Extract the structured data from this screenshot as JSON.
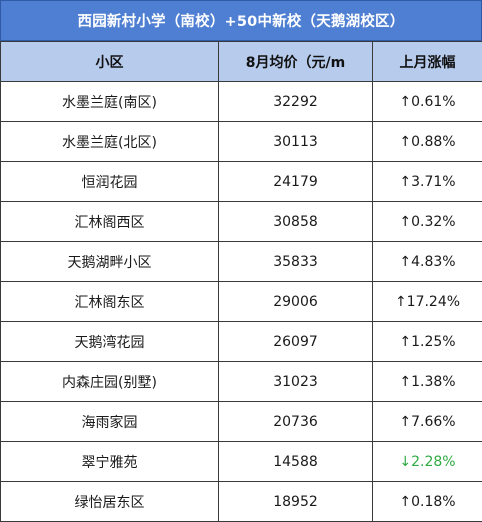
{
  "title": "西园新村小学（南校）+50中新校（天鹅湖校区）",
  "columns": [
    "小区",
    "8月均价（元/m",
    "上月涨幅"
  ],
  "rows": [
    {
      "name": "水墨兰庭(南区)",
      "price": "32292",
      "change": "↑0.61%",
      "direction": "up"
    },
    {
      "name": "水墨兰庭(北区)",
      "price": "30113",
      "change": "↑0.88%",
      "direction": "up"
    },
    {
      "name": "恒润花园",
      "price": "24179",
      "change": "↑3.71%",
      "direction": "up"
    },
    {
      "name": "汇林阁西区",
      "price": "30858",
      "change": "↑0.32%",
      "direction": "up"
    },
    {
      "name": "天鹅湖畔小区",
      "price": "35833",
      "change": "↑4.83%",
      "direction": "up"
    },
    {
      "name": "汇林阁东区",
      "price": "29006",
      "change": "↑17.24%",
      "direction": "up"
    },
    {
      "name": "天鹅湾花园",
      "price": "26097",
      "change": "↑1.25%",
      "direction": "up"
    },
    {
      "name": "内森庄园(别墅)",
      "price": "31023",
      "change": "↑1.38%",
      "direction": "up"
    },
    {
      "name": "海雨家园",
      "price": "20736",
      "change": "↑7.66%",
      "direction": "up"
    },
    {
      "name": "翠宁雅苑",
      "price": "14588",
      "change": "↓2.28%",
      "direction": "down"
    },
    {
      "name": "绿怡居东区",
      "price": "18952",
      "change": "↑0.18%",
      "direction": "up"
    }
  ],
  "colors": {
    "title_bg": "#4f7fd2",
    "header_bg": "#b7cbed",
    "down_color": "#2faa44"
  }
}
